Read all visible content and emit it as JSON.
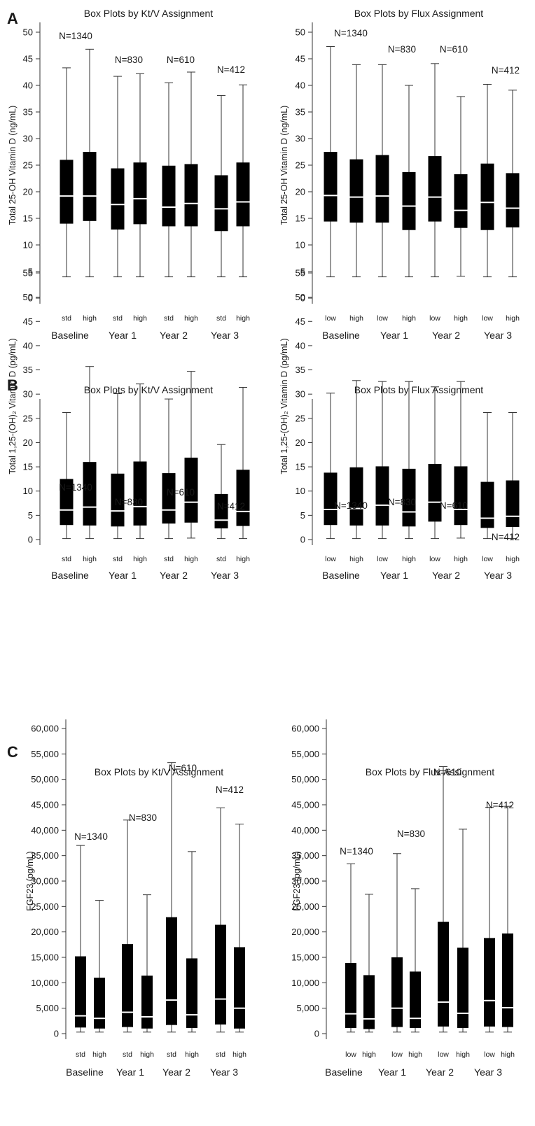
{
  "panels": [
    {
      "letter": "A"
    },
    {
      "letter": "B"
    },
    {
      "letter": "C"
    }
  ],
  "chart_data": [
    {
      "type": "box",
      "title": "Box Plots by Kt/V Assignment",
      "ylabel": "Total 25-OH Vitamin D (ng/mL)",
      "ylim": [
        0,
        50
      ],
      "yticks": [
        "0",
        "5",
        "10",
        "15",
        "20",
        "25",
        "30",
        "35",
        "40",
        "45",
        "50"
      ],
      "groups": [
        "Baseline",
        "Year 1",
        "Year 2",
        "Year 3"
      ],
      "subgroups": [
        "std",
        "high"
      ],
      "n_labels": [
        "N=1340",
        "N=830",
        "N=610",
        "N=412"
      ],
      "boxes": [
        [
          [
            4,
            14,
            19.2,
            26,
            43.3
          ],
          [
            4,
            14.5,
            19.2,
            27.5,
            46.8
          ]
        ],
        [
          [
            4,
            12.9,
            17.6,
            24.4,
            41.7
          ],
          [
            4,
            13.9,
            18.7,
            25.5,
            42.2
          ]
        ],
        [
          [
            4,
            13.5,
            17.1,
            24.9,
            40.5
          ],
          [
            4,
            13.5,
            17.8,
            25.2,
            42.5
          ]
        ],
        [
          [
            4,
            12.6,
            16.8,
            23.1,
            38.1
          ],
          [
            4,
            13.5,
            18.1,
            25.5,
            40.1
          ]
        ]
      ]
    },
    {
      "type": "box",
      "title": "Box Plots by Flux Assignment",
      "ylabel": "Total 25-OH Vitamin D (ng/mL)",
      "ylim": [
        0,
        50
      ],
      "yticks": [
        "0",
        "5",
        "10",
        "15",
        "20",
        "25",
        "30",
        "35",
        "40",
        "45",
        "50"
      ],
      "groups": [
        "Baseline",
        "Year 1",
        "Year 2",
        "Year 3"
      ],
      "subgroups": [
        "low",
        "high"
      ],
      "n_labels": [
        "N=1340",
        "N=830",
        "N=610",
        "N=412"
      ],
      "boxes": [
        [
          [
            4,
            14.4,
            19.3,
            27.5,
            47.3
          ],
          [
            4,
            14.2,
            19,
            26.1,
            43.9
          ]
        ],
        [
          [
            4,
            14.2,
            19.2,
            26.9,
            43.9
          ],
          [
            4,
            12.8,
            17.3,
            23.7,
            40
          ]
        ],
        [
          [
            4,
            14.4,
            19,
            26.7,
            44.1
          ],
          [
            4.1,
            13.2,
            16.5,
            23.3,
            37.9
          ]
        ],
        [
          [
            4,
            12.8,
            18,
            25.3,
            40.2
          ],
          [
            4,
            13.3,
            16.9,
            23.5,
            39.1
          ]
        ]
      ]
    },
    {
      "type": "box",
      "title": "Box Plots by Kt/V Assignment",
      "ylabel": "Total 1,25-(OH)₂ Vitamin D (pg/mL)",
      "ylim": [
        0,
        55
      ],
      "yticks": [
        "0",
        "5",
        "10",
        "15",
        "20",
        "25",
        "30",
        "35",
        "40",
        "45",
        "50",
        "55"
      ],
      "groups": [
        "Baseline",
        "Year 1",
        "Year 2",
        "Year 3"
      ],
      "subgroups": [
        "std",
        "high"
      ],
      "n_labels": [
        "N=1340",
        "N=830",
        "N=610",
        "N=412"
      ],
      "boxes": [
        [
          [
            0.2,
            3,
            6.1,
            12.5,
            26.2
          ],
          [
            0.2,
            2.9,
            6.7,
            16,
            35.7
          ]
        ],
        [
          [
            0.2,
            2.7,
            5.9,
            13.6,
            30.1
          ],
          [
            0.2,
            2.9,
            6.8,
            16.1,
            32.1
          ]
        ],
        [
          [
            0.2,
            3.3,
            6.1,
            13.7,
            29
          ],
          [
            0.3,
            3.5,
            7.7,
            16.9,
            34.7
          ]
        ],
        [
          [
            0.2,
            2.3,
            4,
            9.4,
            19.6
          ],
          [
            0.2,
            2.8,
            5.8,
            14.4,
            31.4
          ]
        ]
      ]
    },
    {
      "type": "box",
      "title": "Box Plots by Flux Assignment",
      "ylabel": "Total 1,25-(OH)₂ Vitamin D (pg/mL)",
      "ylim": [
        0,
        55
      ],
      "yticks": [
        "0",
        "5",
        "10",
        "15",
        "20",
        "25",
        "30",
        "35",
        "40",
        "45",
        "50",
        "55"
      ],
      "groups": [
        "Baseline",
        "Year 1",
        "Year 2",
        "Year 3"
      ],
      "subgroups": [
        "low",
        "high"
      ],
      "n_labels": [
        "N=1340",
        "N=830",
        "N=610",
        "N=412"
      ],
      "boxes": [
        [
          [
            0.2,
            3,
            6.2,
            13.8,
            30.2
          ],
          [
            0.2,
            2.9,
            6.4,
            14.9,
            32.8
          ]
        ],
        [
          [
            0.2,
            2.9,
            7.1,
            15.1,
            32.6
          ],
          [
            0.2,
            2.7,
            5.7,
            14.6,
            32.6
          ]
        ],
        [
          [
            0.2,
            3.7,
            7.7,
            15.6,
            31.5
          ],
          [
            0.3,
            3,
            6.2,
            15.1,
            32.6
          ]
        ],
        [
          [
            0.2,
            2.4,
            4.4,
            11.9,
            26.2
          ],
          [
            0.2,
            2.6,
            4.8,
            12.2,
            26.2
          ]
        ]
      ]
    },
    {
      "type": "box",
      "title": "Box Plots by Kt/V Assignment",
      "ylabel": "FGF23 (pg/mL)",
      "ylim": [
        0,
        60000
      ],
      "yticks": [
        "0",
        "5,000",
        "10,000",
        "15,000",
        "20,000",
        "25,000",
        "30,000",
        "35,000",
        "40,000",
        "45,000",
        "50,000",
        "55,000",
        "60,000"
      ],
      "groups": [
        "Baseline",
        "Year 1",
        "Year 2",
        "Year 3"
      ],
      "subgroups": [
        "std",
        "high"
      ],
      "n_labels": [
        "N=1340",
        "N=830",
        "N=610",
        "N=412"
      ],
      "boxes": [
        [
          [
            300,
            1200,
            3500,
            15200,
            37000
          ],
          [
            300,
            1000,
            3000,
            11000,
            26200
          ]
        ],
        [
          [
            300,
            1300,
            4200,
            17600,
            42000
          ],
          [
            300,
            1000,
            3300,
            11400,
            27300
          ]
        ],
        [
          [
            300,
            1700,
            6600,
            22900,
            53300
          ],
          [
            300,
            1100,
            3700,
            14800,
            35800
          ]
        ],
        [
          [
            300,
            1800,
            6800,
            21400,
            44400
          ],
          [
            300,
            1000,
            5000,
            17000,
            41200
          ]
        ]
      ]
    },
    {
      "type": "box",
      "title": "Box Plots by Flux Assignment",
      "ylabel": "FGF23 (pg/mL)",
      "ylim": [
        0,
        60000
      ],
      "yticks": [
        "0",
        "5,000",
        "10,000",
        "15,000",
        "20,000",
        "25,000",
        "30,000",
        "35,000",
        "40,000",
        "45,000",
        "50,000",
        "55,000",
        "60,000"
      ],
      "groups": [
        "Baseline",
        "Year 1",
        "Year 2",
        "Year 3"
      ],
      "subgroups": [
        "low",
        "high"
      ],
      "n_labels": [
        "N=1340",
        "N=830",
        "N=610",
        "N=412"
      ],
      "boxes": [
        [
          [
            300,
            1100,
            3900,
            13900,
            33400
          ],
          [
            300,
            900,
            2900,
            11500,
            27400
          ]
        ],
        [
          [
            300,
            1300,
            5000,
            15000,
            35400
          ],
          [
            300,
            1100,
            3000,
            12200,
            28500
          ]
        ],
        [
          [
            300,
            1400,
            6200,
            22000,
            52500
          ],
          [
            300,
            1100,
            4000,
            16900,
            40200
          ]
        ],
        [
          [
            300,
            1400,
            6500,
            18800,
            44500
          ],
          [
            300,
            1300,
            5100,
            19700,
            44700
          ]
        ]
      ]
    }
  ]
}
